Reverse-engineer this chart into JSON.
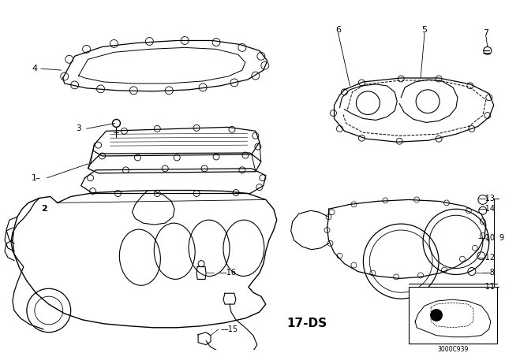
{
  "bg_color": "#ffffff",
  "line_color": "#000000",
  "figsize": [
    6.4,
    4.48
  ],
  "dpi": 100,
  "diagram_code": "17-DS",
  "ref_code": "3000C939"
}
